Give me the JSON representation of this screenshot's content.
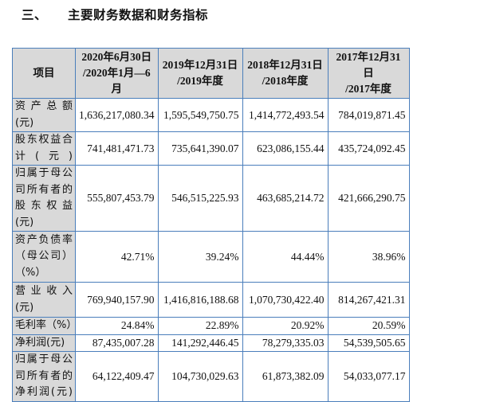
{
  "section": {
    "number": "三、",
    "title": "主要财务数据和财务指标"
  },
  "table": {
    "headers": [
      [
        "项目"
      ],
      [
        "2020年6月30日",
        "/2020年1月—6",
        "月"
      ],
      [
        "2019年12月31日",
        "/2019年度"
      ],
      [
        "2018年12月31日",
        "/2018年度"
      ],
      [
        "2017年12月31日",
        "/2017年度"
      ]
    ],
    "rows": [
      {
        "label": [
          "资产总额",
          "(元)"
        ],
        "values": [
          "1,636,217,080.34",
          "1,595,549,750.75",
          "1,414,772,493.54",
          "784,019,871.45"
        ]
      },
      {
        "label": [
          "股东权益合",
          "计(元)"
        ],
        "values": [
          "741,481,471.73",
          "735,641,390.07",
          "623,086,155.44",
          "435,724,092.45"
        ]
      },
      {
        "label": [
          "归属于母公",
          "司所有者的",
          "股东权益",
          "(元)"
        ],
        "values": [
          "555,807,453.79",
          "546,515,225.93",
          "463,685,214.72",
          "421,666,290.75"
        ]
      },
      {
        "label": [
          "资产负债率",
          "（母公司）",
          "（%）"
        ],
        "values": [
          "42.71%",
          "39.24%",
          "44.44%",
          "38.96%"
        ]
      },
      {
        "label": [
          "营业收入",
          "(元)"
        ],
        "values": [
          "769,940,157.90",
          "1,416,816,188.68",
          "1,070,730,422.40",
          "814,267,421.31"
        ]
      },
      {
        "label": [
          "毛利率（%）"
        ],
        "values": [
          "24.84%",
          "22.89%",
          "20.92%",
          "20.59%"
        ]
      },
      {
        "label": [
          "净利润(元)"
        ],
        "values": [
          "87,435,007.28",
          "141,292,446.45",
          "78,279,335.03",
          "54,539,505.65"
        ]
      },
      {
        "label": [
          "归属于母公",
          "司所有者的",
          "净利润(元)"
        ],
        "values": [
          "64,122,409.47",
          "104,730,029.63",
          "61,873,382.09",
          "54,033,077.17"
        ]
      }
    ]
  },
  "colors": {
    "border": "#4a7ebb",
    "label_bg": "#d9d9d9"
  }
}
